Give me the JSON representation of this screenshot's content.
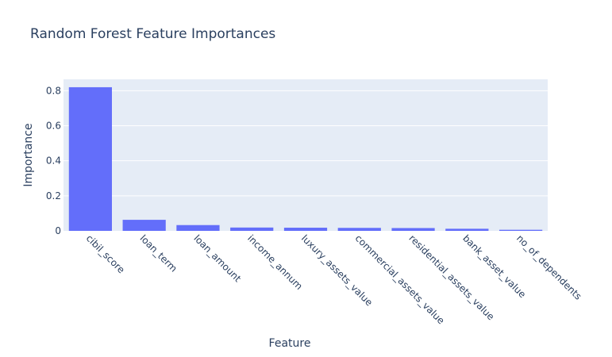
{
  "chart_data": {
    "type": "bar",
    "title": "Random Forest Feature Importances",
    "xlabel": "Feature",
    "ylabel": "Importance",
    "categories": [
      "cibil_score",
      "loan_term",
      "loan_amount",
      "income_annum",
      "luxury_assets_value",
      "commercial_assets_value",
      "residential_assets_value",
      "bank_asset_value",
      "no_of_dependents"
    ],
    "values": [
      0.82,
      0.063,
      0.033,
      0.019,
      0.018,
      0.017,
      0.016,
      0.012,
      0.006
    ],
    "ylim": [
      0,
      0.865
    ],
    "yticks": [
      "0",
      "0.2",
      "0.4",
      "0.6",
      "0.8"
    ],
    "ytick_values": [
      0,
      0.2,
      0.4,
      0.6,
      0.8
    ],
    "grid": true,
    "legend": "none",
    "colors": {
      "bar": "#636efa",
      "plot_bg": "#e5ecf6",
      "grid": "#ffffff",
      "text": "#2a3f5f"
    }
  }
}
